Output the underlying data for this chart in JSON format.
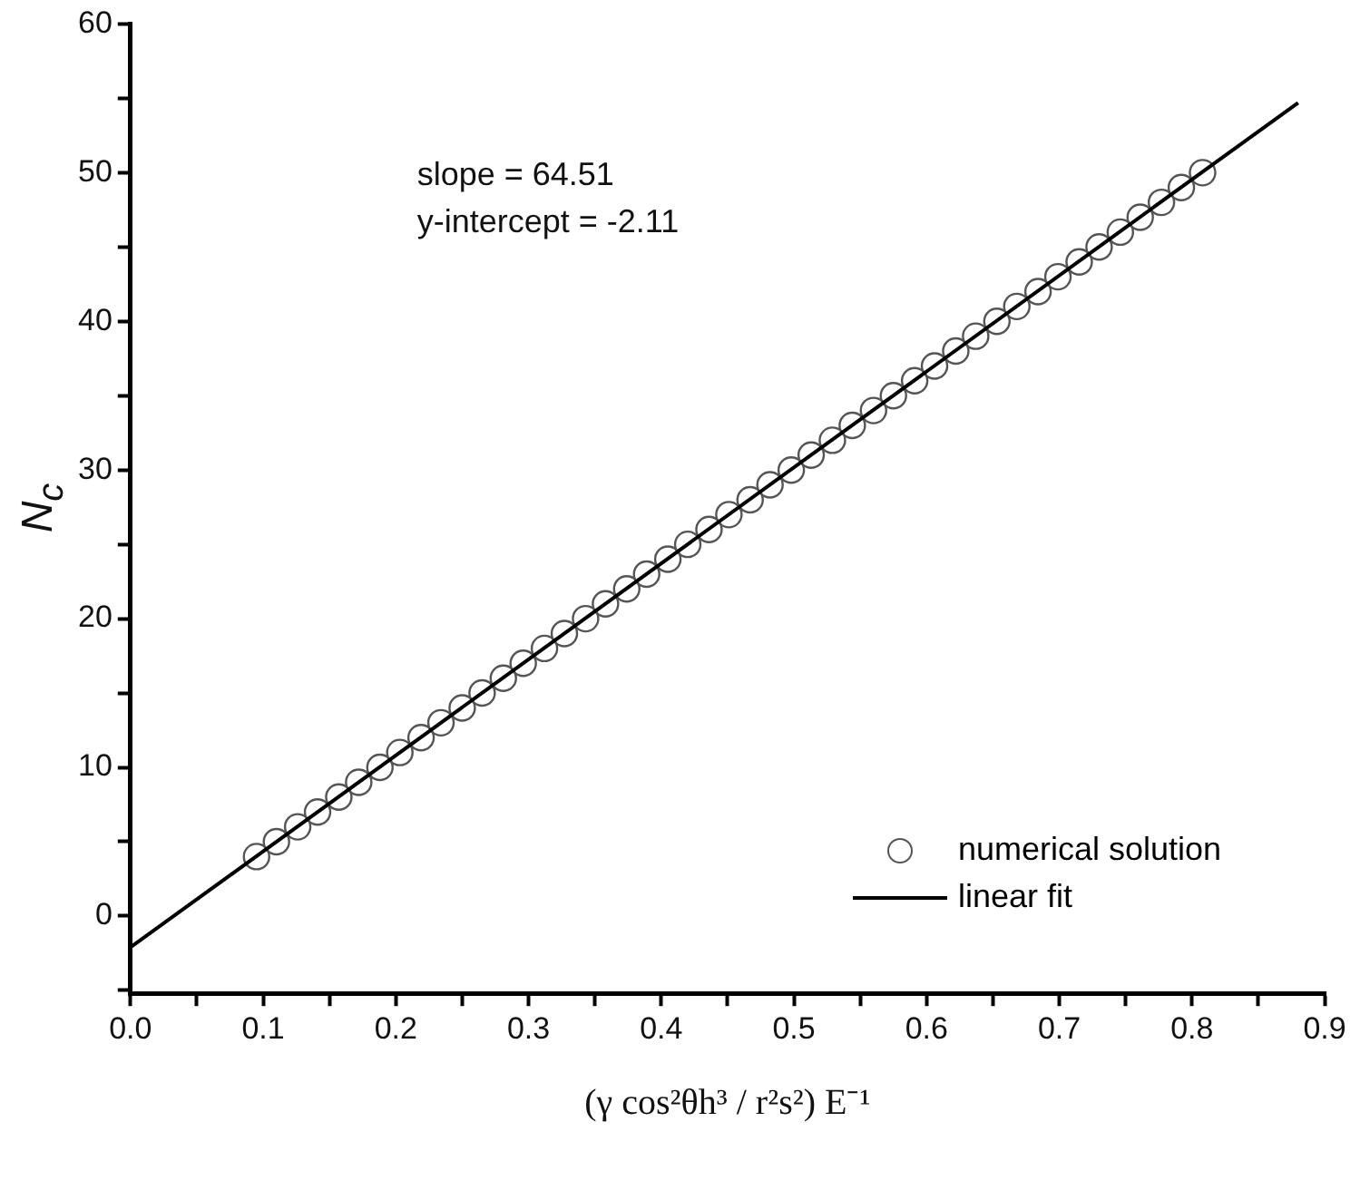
{
  "chart_data": {
    "type": "scatter",
    "xlabel": "(γ cos²θh³ / r²s²) E⁻¹",
    "ylabel": "N$_{c}$",
    "annotations": [
      "slope = 64.51",
      "y-intercept = -2.11"
    ],
    "xlim": [
      0,
      0.9
    ],
    "ylim": [
      -5.2,
      60
    ],
    "xticks": [
      {
        "value": 0,
        "label": "0.0"
      },
      {
        "value": 0.05,
        "label": null
      },
      0.1,
      {
        "value": 0.15,
        "label": null
      },
      0.2,
      {
        "value": 0.25,
        "label": null
      },
      0.3,
      {
        "value": 0.35,
        "label": null
      },
      0.4,
      {
        "value": 0.45,
        "label": null
      },
      0.5,
      {
        "value": 0.55,
        "label": null
      },
      0.6,
      {
        "value": 0.65,
        "label": null
      },
      0.7,
      {
        "value": 0.75,
        "label": null
      },
      0.8,
      {
        "value": 0.85,
        "label": null
      },
      0.9
    ],
    "yticks": [
      {
        "value": -5,
        "label": null
      },
      0,
      {
        "value": 5,
        "label": null
      },
      10,
      {
        "value": 15,
        "label": null
      },
      20,
      {
        "value": 25,
        "label": null
      },
      30,
      {
        "value": 35,
        "label": null
      },
      40,
      {
        "value": 45,
        "label": null
      },
      50,
      {
        "value": 55,
        "label": null
      },
      60
    ],
    "grid": false,
    "legend": "bottom right",
    "series": [
      {
        "name": "numerical solution",
        "type": "scatter",
        "marker": "circle",
        "color": "#555555",
        "x": [
          0.095,
          0.11,
          0.126,
          0.141,
          0.157,
          0.172,
          0.188,
          0.203,
          0.219,
          0.234,
          0.25,
          0.265,
          0.281,
          0.296,
          0.312,
          0.327,
          0.343,
          0.358,
          0.374,
          0.389,
          0.405,
          0.42,
          0.436,
          0.451,
          0.467,
          0.482,
          0.498,
          0.513,
          0.529,
          0.544,
          0.56,
          0.575,
          0.591,
          0.606,
          0.622,
          0.637,
          0.653,
          0.668,
          0.684,
          0.699,
          0.715,
          0.73,
          0.746,
          0.761,
          0.777,
          0.792,
          0.808
        ],
        "values": [
          4,
          5,
          6,
          7,
          8,
          9,
          10,
          11,
          12,
          13,
          14,
          15,
          16,
          17,
          18,
          19,
          20,
          21,
          22,
          23,
          24,
          25,
          26,
          27,
          28,
          29,
          30,
          31,
          32,
          33,
          34,
          35,
          36,
          37,
          38,
          39,
          40,
          41,
          42,
          43,
          44,
          45,
          46,
          47,
          48,
          49,
          50
        ]
      },
      {
        "name": "linear fit",
        "type": "line",
        "marker": "none",
        "color": "#000000",
        "x": [
          0,
          0.88
        ],
        "values": [
          -2.1,
          54.7
        ]
      }
    ]
  }
}
